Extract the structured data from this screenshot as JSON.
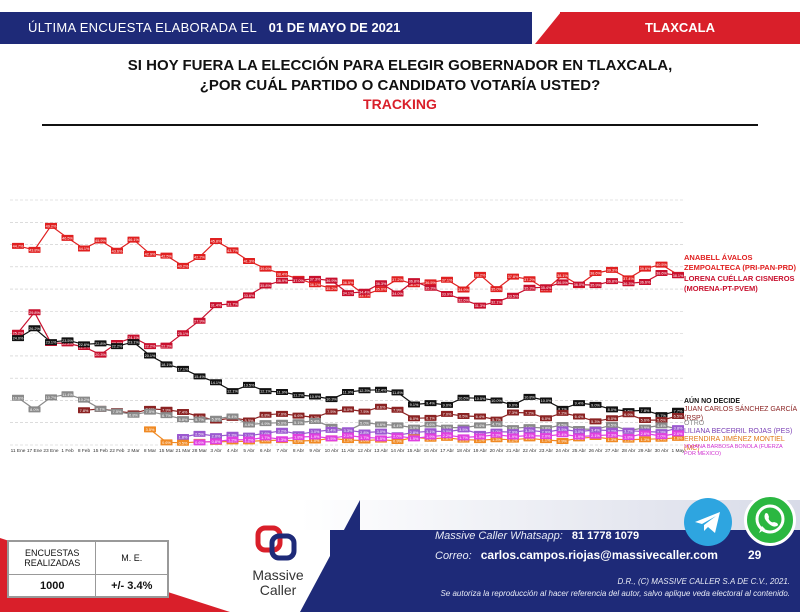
{
  "header": {
    "prefix": "ÚLTIMA ENCUESTA ELABORADA EL",
    "date": "01 DE MAYO DE 2021",
    "state": "TLAXCALA"
  },
  "title_line1": "SI HOY FUERA LA ELECCIÓN PARA ELEGIR GOBERNADOR EN TLAXCALA,",
  "title_line2": "¿POR CUÁL PARTIDO O CANDIDATO VOTARÍA USTED?",
  "subtitle": "TRACKING",
  "chart_data": {
    "type": "line",
    "categories": [
      "11 Ene",
      "17 Ene",
      "23 Ene",
      "1 Feb",
      "8 Feb",
      "15 Feb",
      "22 Feb",
      "2 Mar",
      "8 Mar",
      "15 Mar",
      "21 Mar",
      "28 Mar",
      "3 Abr",
      "4 Abr",
      "5 Abr",
      "6 Abr",
      "7 Abr",
      "8 Abr",
      "9 Abr",
      "10 Abr",
      "11 Abr",
      "12 Abr",
      "13 Abr",
      "14 Abr",
      "15 Abr",
      "16 Abr",
      "17 Abr",
      "18 Abr",
      "19 Abr",
      "20 Abr",
      "21 Abr",
      "22 Abr",
      "23 Abr",
      "24 Abr",
      "25 Abr",
      "26 Abr",
      "27 Abr",
      "28 Abr",
      "29 Abr",
      "30 Abr",
      "1 May"
    ],
    "ylim": [
      0,
      55
    ],
    "grid": "horizontal",
    "series": [
      {
        "name": "ANABELL ÁVALOS ZEMPOALTECA (PRI-PAN-PRD)",
        "color": "#e02020",
        "values": [
          44.7,
          43.8,
          49.2,
          46.5,
          44.1,
          45.9,
          43.6,
          46.1,
          42.9,
          42.5,
          40.2,
          42.2,
          45.8,
          43.7,
          41.3,
          39.6,
          38.4,
          37.3,
          36.1,
          35.2,
          36.5,
          33.7,
          35.0,
          37.2,
          36.1,
          36.5,
          37.1,
          34.9,
          38.2,
          35.0,
          37.8,
          37.2,
          34.9,
          38.1,
          35.9,
          38.6,
          39.3,
          37.4,
          39.6,
          40.5,
          38.2
        ]
      },
      {
        "name": "LORENA CUÉLLAR CISNEROS (MORENA-PT-PVEM)",
        "color": "#c8102e",
        "values": [
          25.2,
          29.8,
          22.9,
          22.8,
          22.0,
          20.3,
          22.9,
          24.1,
          22.2,
          22.3,
          25.1,
          27.9,
          31.4,
          31.7,
          33.6,
          35.8,
          36.9,
          37.0,
          37.3,
          36.9,
          34.1,
          34.4,
          36.3,
          34.0,
          36.8,
          35.3,
          33.9,
          32.6,
          31.3,
          32.1,
          33.5,
          35.3,
          35.4,
          36.5,
          36.0,
          35.9,
          36.8,
          36.3,
          36.6,
          38.6,
          38.1
        ]
      },
      {
        "name": "AÚN NO DECIDE",
        "color": "#111111",
        "values": [
          24.0,
          26.2,
          23.1,
          23.5,
          22.6,
          22.8,
          22.2,
          23.1,
          20.1,
          18.1,
          17.1,
          15.4,
          14.1,
          12.1,
          13.5,
          12.1,
          11.9,
          11.2,
          10.9,
          10.3,
          11.9,
          12.3,
          12.4,
          11.8,
          9.1,
          9.4,
          9.0,
          10.6,
          10.5,
          10.0,
          9.0,
          10.8,
          10.0,
          8.1,
          9.4,
          9.0,
          8.0,
          7.6,
          7.8,
          6.7,
          7.7
        ]
      },
      {
        "name": "JUAN CARLOS SÁNCHEZ GARCÍA (RSP)",
        "color": "#8b2323",
        "values": [
          null,
          null,
          null,
          null,
          7.8,
          8.1,
          7.6,
          7.1,
          8.1,
          7.9,
          7.4,
          6.4,
          5.5,
          6.1,
          5.5,
          6.8,
          7.0,
          6.6,
          6.2,
          7.5,
          8.0,
          7.5,
          8.6,
          7.9,
          6.0,
          6.1,
          7.0,
          6.5,
          6.4,
          5.7,
          7.3,
          7.2,
          6.0,
          7.2,
          6.4,
          5.3,
          6.0,
          6.9,
          5.6,
          5.6,
          6.5
        ]
      },
      {
        "name": "OTRO",
        "color": "#8a8a8a",
        "values": [
          10.6,
          8.0,
          10.7,
          11.4,
          10.2,
          8.1,
          7.5,
          6.8,
          7.5,
          6.7,
          5.8,
          5.7,
          5.9,
          6.4,
          4.6,
          4.9,
          5.0,
          5.1,
          5.4,
          4.1,
          3.2,
          5.0,
          4.6,
          4.4,
          3.9,
          4.6,
          3.9,
          3.9,
          4.4,
          4.7,
          3.8,
          4.0,
          3.8,
          4.5,
          3.6,
          3.5,
          4.5,
          3.2,
          3.9,
          4.4,
          3.6
        ]
      },
      {
        "name": "LILIANA BECERRIL ROJAS (PES)",
        "color": "#9b59d0",
        "values": [
          null,
          null,
          null,
          null,
          null,
          null,
          null,
          null,
          null,
          null,
          1.8,
          2.5,
          2.0,
          2.3,
          2.1,
          2.6,
          3.2,
          2.4,
          3.0,
          3.4,
          3.3,
          2.8,
          3.0,
          2.2,
          2.8,
          3.1,
          3.0,
          3.5,
          2.5,
          3.0,
          2.9,
          3.3,
          2.9,
          3.5,
          3.0,
          3.4,
          3.2,
          3.2,
          3.0,
          2.9,
          3.8
        ]
      },
      {
        "name": "ERENDIRA JIMÉNEZ MONTIEL (MC)",
        "color": "#f08a24",
        "values": [
          null,
          null,
          null,
          null,
          null,
          null,
          null,
          null,
          3.5,
          0.6,
          0.5,
          0.7,
          0.7,
          0.8,
          0.8,
          1.0,
          1.1,
          0.9,
          1.0,
          1.5,
          1.1,
          1.0,
          1.2,
          0.9,
          1.7,
          1.4,
          1.6,
          1.2,
          1.1,
          1.3,
          1.2,
          1.5,
          1.1,
          0.9,
          1.5,
          1.8,
          1.3,
          1.2,
          1.3,
          1.4,
          1.6
        ]
      },
      {
        "name": "VIVIANA BARBOSA BONOLA (FUERZA POR MÉXICO)",
        "color": "#e040e0",
        "values": [
          null,
          null,
          null,
          null,
          null,
          null,
          null,
          null,
          null,
          null,
          null,
          0.6,
          0.8,
          1.2,
          1.2,
          1.7,
          1.3,
          1.8,
          1.9,
          1.5,
          2.1,
          1.7,
          1.5,
          2.0,
          1.5,
          1.9,
          2.2,
          1.7,
          1.9,
          2.3,
          1.9,
          2.1,
          2.0,
          2.4,
          1.9,
          2.1,
          2.3,
          1.8,
          2.6,
          2.0,
          2.6
        ]
      }
    ]
  },
  "legend": {
    "anabell": "ANABELL ÁVALOS ZEMPOALTECA (PRI-PAN-PRD)",
    "lorena": "LORENA CUÉLLAR CISNEROS (MORENA-PT-PVEM)",
    "nodecide": "AÚN NO DECIDE",
    "juan": "JUAN CARLOS SÁNCHEZ GARCÍA (RSP)",
    "otro": "OTRO",
    "liliana": "LILIANA BECERRIL ROJAS (PES)",
    "erendira": "ERENDIRA JIMÉNEZ MONTIEL (MC)",
    "viviana": "VIVIANA BARBOSA BONOLA (FUERZA POR MÉXICO)"
  },
  "stats": {
    "encuestas_label": "ENCUESTAS REALIZADAS",
    "me_label": "M. E.",
    "encuestas_value": "1000",
    "me_value": "+/- 3.4%"
  },
  "logo": {
    "line1": "Massive",
    "line2": "Caller"
  },
  "contact": {
    "whatsapp_label": "Massive Caller Whatsapp:",
    "whatsapp_number": "81 1778 1079",
    "email_label": "Correo:",
    "email": "carlos.campos.riojas@massivecaller.com"
  },
  "footer": {
    "copyright": "D.R., (C) MASSIVE CALLER S.A DE C.V., 2021.",
    "note": "Se autoriza la reproducción al hacer referencia del autor, salvo aplique veda electoral al contenido."
  },
  "page_number": "29",
  "colors": {
    "navy": "#1e2a78",
    "red": "#d91f2a",
    "telegram": "#2ea5e0",
    "whatsapp": "#2bb741"
  },
  "icons": [
    "telegram-icon",
    "whatsapp-icon",
    "massive-caller-logo"
  ]
}
